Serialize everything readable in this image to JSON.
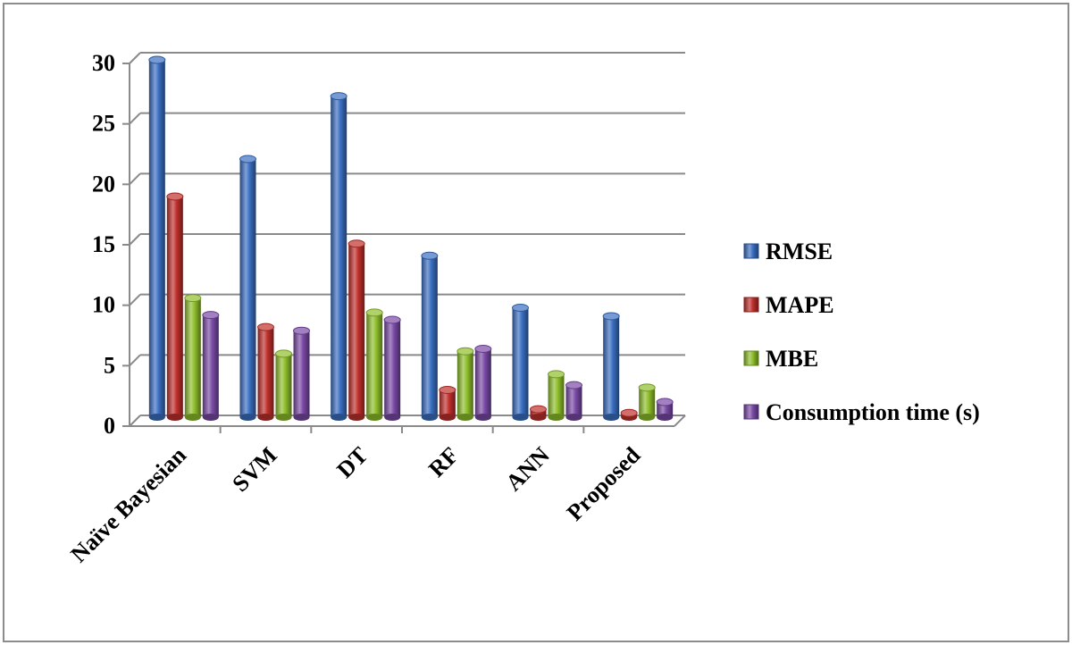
{
  "chart_data": {
    "type": "bar",
    "title": "",
    "xlabel": "",
    "ylabel": "",
    "ylim": [
      0,
      30
    ],
    "y_ticks": [
      "0",
      "5",
      "10",
      "15",
      "20",
      "25",
      "30"
    ],
    "grid": true,
    "legend_position": "right",
    "style": "3d-cylinder",
    "categories": [
      "Naïve Bayesian",
      "SVM",
      "DT",
      "RF",
      "ANN",
      "Proposed"
    ],
    "series": [
      {
        "name": "RMSE",
        "color": "#3a6fc2",
        "values": [
          29.7,
          21.5,
          26.7,
          13.5,
          9.2,
          8.5
        ]
      },
      {
        "name": "MAPE",
        "color": "#c0302c",
        "values": [
          18.4,
          7.6,
          14.5,
          2.4,
          0.8,
          0.5
        ]
      },
      {
        "name": "MBE",
        "color": "#8fbf2c",
        "values": [
          10.0,
          5.4,
          8.8,
          5.6,
          3.7,
          2.6
        ]
      },
      {
        "name": "Consumption time (s)",
        "color": "#7a4aa6",
        "values": [
          8.6,
          7.3,
          8.2,
          5.8,
          2.8,
          1.4
        ]
      }
    ]
  }
}
